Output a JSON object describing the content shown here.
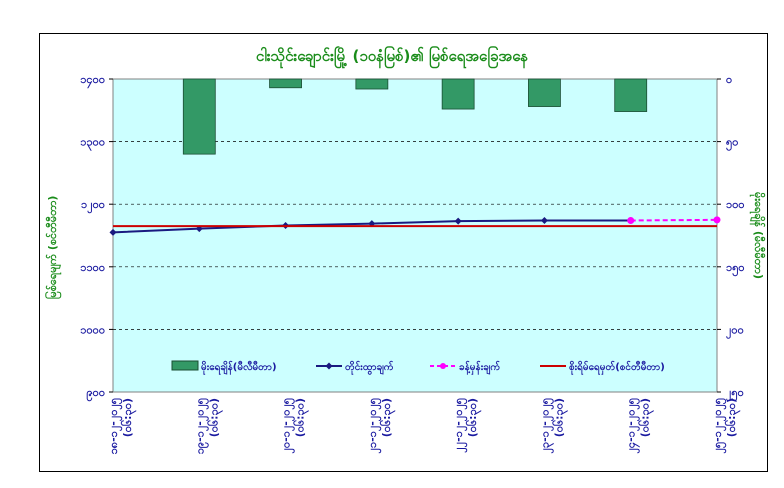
{
  "chart_data": {
    "type": "bar+line",
    "title": "ငါးသိုင်းချောင်းမြို့ (၁၀နံမြစ်)၏ မြစ်ရေအခြေအနေ",
    "categories": [
      "၁၈-၁၂-၂၀၂၅\n(၀၆:၃၀)",
      "၁၉-၁၂-၂၀၂၅\n(၀၆:၃၀)",
      "၂၀-၁၂-၂၀၂၅\n(၀၆:၃၀)",
      "၂၁-၁၂-၂၀၂၅\n(၀၆:၃၀)",
      "၂၂-၁၂-၂၀၂၅\n(၀၆:၃၀)",
      "၂၃-၁၂-၂၀၂၅\n(၀၆:၃၀)",
      "၂၄-၁၂-၂၀၂၅\n(၀၆:၃၀)",
      "၂၅-၁၂-၂၀၂၅\n(၀၆:၃၀)"
    ],
    "ylabel_left": "မြစ်ရေမျက် (စင်တီမီတာ)",
    "ylabel_right": "မိုးရေချိန် (မီလီမီတာ)",
    "left_axis": {
      "min": 900,
      "max": 1400,
      "ticks": [
        "၉၀၀",
        "၁၀၀၀",
        "၁၁၀၀",
        "၁၂၀၀",
        "၁၃၀၀",
        "၁၄၀၀"
      ],
      "values": [
        900,
        1000,
        1100,
        1200,
        1300,
        1400
      ]
    },
    "right_axis": {
      "min": 0,
      "max": 250,
      "reversed": true,
      "ticks": [
        "၀",
        "၅၀",
        "၁၀၀",
        "၁၅၀",
        "၂၀၀",
        "၂၅၀"
      ],
      "values": [
        0,
        50,
        100,
        150,
        200,
        250
      ]
    },
    "series": [
      {
        "name": "မိုးရေချိန်(မီလီမီတာ)",
        "kind": "bar",
        "axis": "right",
        "color": "#339966",
        "values": [
          0,
          60,
          7,
          8,
          24,
          22,
          26,
          null
        ]
      },
      {
        "name": "တိုင်းထွာချက်",
        "kind": "line",
        "axis": "left",
        "color": "#1a1a80",
        "marker": "diamond",
        "values": [
          1155,
          1161,
          1166,
          1169,
          1173,
          1174,
          1174,
          null
        ]
      },
      {
        "name": "ခန့်မှန်းချက်",
        "kind": "line",
        "axis": "left",
        "color": "#ff00ff",
        "dash": true,
        "marker": "circle",
        "values": [
          null,
          null,
          null,
          null,
          null,
          null,
          1174,
          1175
        ]
      },
      {
        "name": "စိုးရိမ်ရေမှတ်(စင်တီမီတာ)",
        "kind": "line",
        "axis": "left",
        "color": "#cc0000",
        "values": [
          1165,
          1165,
          1165,
          1165,
          1165,
          1165,
          1165,
          1165
        ]
      }
    ],
    "grid": "horizontal dashed",
    "legend_position": "bottom-inside"
  }
}
